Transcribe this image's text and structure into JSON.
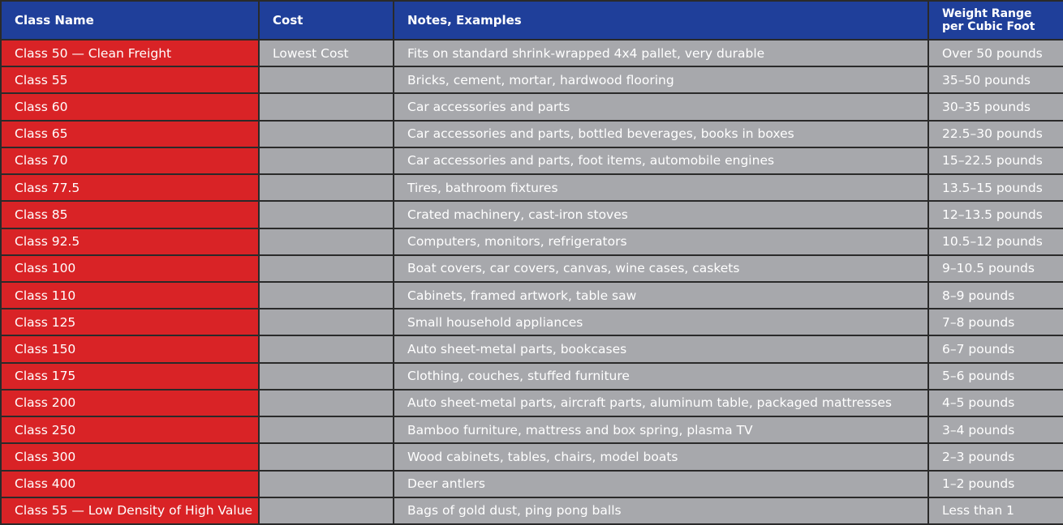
{
  "headers": {
    "class_name": "Class Name",
    "cost": "Cost",
    "notes": "Notes, Examples",
    "weight_line1": "Weight Range",
    "weight_line2": "per Cubic Foot"
  },
  "rows": [
    {
      "class": "Class 50 — Clean Freight",
      "cost": "Lowest Cost",
      "notes": "Fits on standard shrink-wrapped 4x4 pallet, very durable",
      "weight": "Over 50 pounds"
    },
    {
      "class": "Class 55",
      "cost": "",
      "notes": "Bricks, cement, mortar, hardwood flooring",
      "weight": "35–50 pounds"
    },
    {
      "class": "Class 60",
      "cost": "",
      "notes": "Car accessories and parts",
      "weight": "30–35 pounds"
    },
    {
      "class": "Class 65",
      "cost": "",
      "notes": "Car accessories and parts, bottled beverages, books in boxes",
      "weight": "22.5–30 pounds"
    },
    {
      "class": "Class 70",
      "cost": "",
      "notes": "Car accessories and parts, foot items, automobile engines",
      "weight": "15–22.5 pounds"
    },
    {
      "class": "Class 77.5",
      "cost": "",
      "notes": "Tires, bathroom fixtures",
      "weight": "13.5–15 pounds"
    },
    {
      "class": "Class 85",
      "cost": "",
      "notes": "Crated machinery, cast-iron stoves",
      "weight": "12–13.5 pounds"
    },
    {
      "class": "Class 92.5",
      "cost": "",
      "notes": "Computers, monitors, refrigerators",
      "weight": "10.5–12 pounds"
    },
    {
      "class": "Class 100",
      "cost": "",
      "notes": "Boat covers, car covers, canvas, wine cases, caskets",
      "weight": "9–10.5 pounds"
    },
    {
      "class": "Class 110",
      "cost": "",
      "notes": "Cabinets, framed artwork, table saw",
      "weight": "8–9 pounds"
    },
    {
      "class": "Class 125",
      "cost": "",
      "notes": "Small household appliances",
      "weight": "7–8 pounds"
    },
    {
      "class": "Class 150",
      "cost": "",
      "notes": "Auto sheet-metal parts, bookcases",
      "weight": "6–7 pounds"
    },
    {
      "class": "Class 175",
      "cost": "",
      "notes": "Clothing, couches, stuffed furniture",
      "weight": "5–6 pounds"
    },
    {
      "class": "Class 200",
      "cost": "",
      "notes": "Auto sheet-metal parts, aircraft parts, aluminum table, packaged mattresses",
      "weight": "4–5 pounds"
    },
    {
      "class": "Class 250",
      "cost": "",
      "notes": "Bamboo furniture, mattress and box spring, plasma TV",
      "weight": "3–4 pounds"
    },
    {
      "class": "Class 300",
      "cost": "",
      "notes": "Wood cabinets, tables, chairs, model boats",
      "weight": "2–3 pounds"
    },
    {
      "class": "Class 400",
      "cost": "",
      "notes": "Deer antlers",
      "weight": "1–2 pounds"
    },
    {
      "class": "Class 55 — Low Density of High Value",
      "cost": "",
      "notes": "Bags of gold dust, ping pong balls",
      "weight": "Less than 1"
    }
  ],
  "colors": {
    "header_bg": "#1f3f9a",
    "class_bg": "#d92326",
    "cell_bg": "#a7a8ac",
    "border": "#2a2a2a",
    "text": "#ffffff"
  }
}
